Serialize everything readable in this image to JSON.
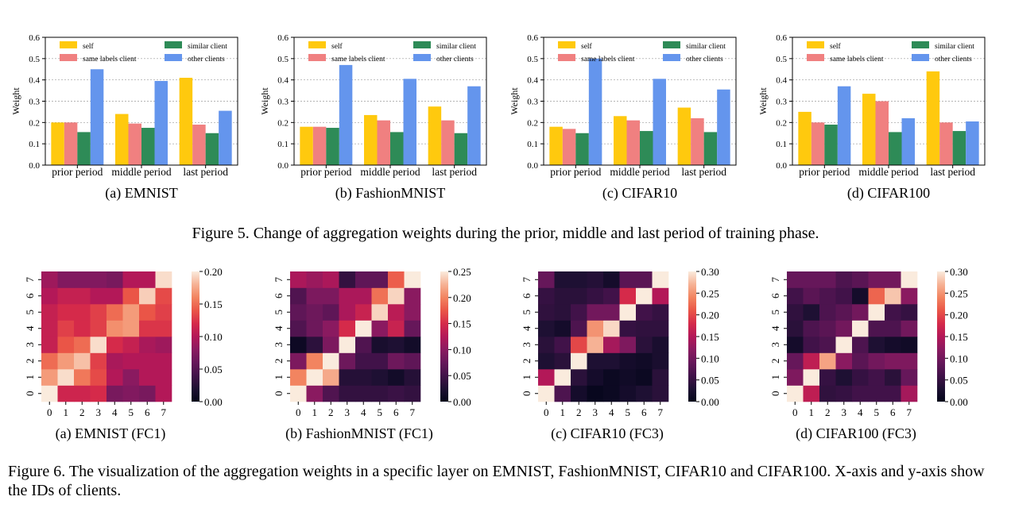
{
  "figure5": {
    "caption": "Figure 5. Change of aggregation weights during the prior, middle and last period of training phase.",
    "panels": [
      {
        "caption": "(a) EMNIST"
      },
      {
        "caption": "(b) FashionMNIST"
      },
      {
        "caption": "(c) CIFAR10"
      },
      {
        "caption": "(d) CIFAR100"
      }
    ]
  },
  "figure6": {
    "caption": "Figure 6. The visualization of the aggregation weights in a specific layer on EMNIST, FashionMNIST, CIFAR10 and CIFAR100. X-axis and y-axis show the IDs of clients.",
    "panels": [
      {
        "caption": "(a) EMNIST (FC1)"
      },
      {
        "caption": "(b) FashionMNIST (FC1)"
      },
      {
        "caption": "(c) CIFAR10 (FC3)"
      },
      {
        "caption": "(d) CIFAR100 (FC3)"
      }
    ]
  },
  "colors": {
    "self": "#ffc90e",
    "same labels client": "#f08080",
    "similar client": "#2e8b57",
    "other clients": "#6495ed",
    "heatmap_colormap": "rocket"
  },
  "chart_data": [
    {
      "type": "bar",
      "ylabel": "Weight",
      "ylim": [
        0,
        0.6
      ],
      "yticks": [
        "0.0",
        "0.1",
        "0.2",
        "0.3",
        "0.4",
        "0.5",
        "0.6"
      ],
      "categories": [
        "prior period",
        "middle period",
        "last period"
      ],
      "legend_position": "top",
      "grid": "horizontal dashed",
      "series": [
        {
          "name": "self",
          "values": [
            0.2,
            0.24,
            0.41
          ]
        },
        {
          "name": "same labels client",
          "values": [
            0.2,
            0.195,
            0.19
          ]
        },
        {
          "name": "similar client",
          "values": [
            0.155,
            0.175,
            0.15
          ]
        },
        {
          "name": "other clients",
          "values": [
            0.45,
            0.395,
            0.255
          ]
        }
      ]
    },
    {
      "type": "bar",
      "ylabel": "Weight",
      "ylim": [
        0,
        0.6
      ],
      "yticks": [
        "0.0",
        "0.1",
        "0.2",
        "0.3",
        "0.4",
        "0.5",
        "0.6"
      ],
      "categories": [
        "prior period",
        "middle period",
        "last period"
      ],
      "legend_position": "top",
      "grid": "horizontal dashed",
      "series": [
        {
          "name": "self",
          "values": [
            0.18,
            0.235,
            0.275
          ]
        },
        {
          "name": "same labels client",
          "values": [
            0.18,
            0.21,
            0.21
          ]
        },
        {
          "name": "similar client",
          "values": [
            0.175,
            0.155,
            0.15
          ]
        },
        {
          "name": "other clients",
          "values": [
            0.47,
            0.405,
            0.37
          ]
        }
      ]
    },
    {
      "type": "bar",
      "ylabel": "Weight",
      "ylim": [
        0,
        0.6
      ],
      "yticks": [
        "0.0",
        "0.1",
        "0.2",
        "0.3",
        "0.4",
        "0.5",
        "0.6"
      ],
      "categories": [
        "prior period",
        "middle period",
        "last period"
      ],
      "legend_position": "top",
      "grid": "horizontal dashed",
      "series": [
        {
          "name": "self",
          "values": [
            0.18,
            0.23,
            0.27
          ]
        },
        {
          "name": "same labels client",
          "values": [
            0.17,
            0.21,
            0.22
          ]
        },
        {
          "name": "similar client",
          "values": [
            0.15,
            0.16,
            0.155
          ]
        },
        {
          "name": "other clients",
          "values": [
            0.5,
            0.405,
            0.355
          ]
        }
      ]
    },
    {
      "type": "bar",
      "ylabel": "Weight",
      "ylim": [
        0,
        0.6
      ],
      "yticks": [
        "0.0",
        "0.1",
        "0.2",
        "0.3",
        "0.4",
        "0.5",
        "0.6"
      ],
      "categories": [
        "prior period",
        "middle period",
        "last period"
      ],
      "legend_position": "top",
      "grid": "horizontal dashed",
      "series": [
        {
          "name": "self",
          "values": [
            0.25,
            0.335,
            0.44
          ]
        },
        {
          "name": "same labels client",
          "values": [
            0.2,
            0.3,
            0.2
          ]
        },
        {
          "name": "similar client",
          "values": [
            0.19,
            0.155,
            0.16
          ]
        },
        {
          "name": "other clients",
          "values": [
            0.37,
            0.22,
            0.205
          ]
        }
      ]
    },
    {
      "type": "heatmap",
      "x_labels": [
        "0",
        "1",
        "2",
        "3",
        "4",
        "5",
        "6",
        "7"
      ],
      "y_labels": [
        "0",
        "1",
        "2",
        "3",
        "4",
        "5",
        "6",
        "7"
      ],
      "vmin": 0,
      "vmax": 0.2,
      "colorbar_ticks": [
        "0.00",
        "0.05",
        "0.10",
        "0.15",
        "0.20"
      ],
      "values": [
        [
          0.2,
          0.115,
          0.115,
          0.12,
          0.07,
          0.075,
          0.07,
          0.1
        ],
        [
          0.17,
          0.195,
          0.155,
          0.135,
          0.1,
          0.08,
          0.1,
          0.1
        ],
        [
          0.15,
          0.17,
          0.185,
          0.13,
          0.095,
          0.1,
          0.1,
          0.1
        ],
        [
          0.11,
          0.14,
          0.15,
          0.195,
          0.12,
          0.11,
          0.095,
          0.09
        ],
        [
          0.11,
          0.13,
          0.12,
          0.13,
          0.165,
          0.17,
          0.125,
          0.125
        ],
        [
          0.11,
          0.12,
          0.12,
          0.13,
          0.15,
          0.17,
          0.14,
          0.13
        ],
        [
          0.1,
          0.11,
          0.11,
          0.1,
          0.1,
          0.14,
          0.19,
          0.135
        ],
        [
          0.09,
          0.075,
          0.075,
          0.075,
          0.07,
          0.1,
          0.1,
          0.195
        ]
      ]
    },
    {
      "type": "heatmap",
      "x_labels": [
        "0",
        "1",
        "2",
        "3",
        "4",
        "5",
        "6",
        "7"
      ],
      "y_labels": [
        "0",
        "1",
        "2",
        "3",
        "4",
        "5",
        "6",
        "7"
      ],
      "vmin": 0,
      "vmax": 0.25,
      "colorbar_ticks": [
        "0.00",
        "0.05",
        "0.10",
        "0.15",
        "0.20",
        "0.25"
      ],
      "values": [
        [
          0.25,
          0.1,
          0.06,
          0.04,
          0.04,
          0.04,
          0.045,
          0.04
        ],
        [
          0.2,
          0.25,
          0.22,
          0.03,
          0.03,
          0.025,
          0.015,
          0.03
        ],
        [
          0.09,
          0.2,
          0.25,
          0.08,
          0.05,
          0.05,
          0.08,
          0.07
        ],
        [
          0.01,
          0.035,
          0.09,
          0.25,
          0.06,
          0.02,
          0.025,
          0.015
        ],
        [
          0.06,
          0.08,
          0.1,
          0.15,
          0.25,
          0.1,
          0.14,
          0.075
        ],
        [
          0.07,
          0.08,
          0.07,
          0.12,
          0.14,
          0.24,
          0.13,
          0.1
        ],
        [
          0.06,
          0.09,
          0.09,
          0.12,
          0.12,
          0.19,
          0.24,
          0.1
        ],
        [
          0.12,
          0.11,
          0.12,
          0.04,
          0.07,
          0.07,
          0.18,
          0.25
        ]
      ]
    },
    {
      "type": "heatmap",
      "x_labels": [
        "0",
        "1",
        "2",
        "3",
        "4",
        "5",
        "6",
        "7"
      ],
      "y_labels": [
        "0",
        "1",
        "2",
        "3",
        "4",
        "5",
        "6",
        "7"
      ],
      "vmin": 0,
      "vmax": 0.3,
      "colorbar_ticks": [
        "0.00",
        "0.05",
        "0.10",
        "0.15",
        "0.20",
        "0.25",
        "0.30"
      ],
      "values": [
        [
          0.3,
          0.07,
          0.02,
          0.005,
          0.01,
          0.02,
          0.03,
          0.04
        ],
        [
          0.15,
          0.3,
          0.04,
          0.02,
          0.01,
          0.015,
          0.01,
          0.04
        ],
        [
          0.03,
          0.04,
          0.3,
          0.03,
          0.03,
          0.02,
          0.015,
          0.025
        ],
        [
          0.04,
          0.06,
          0.2,
          0.27,
          0.14,
          0.11,
          0.04,
          0.025
        ],
        [
          0.03,
          0.02,
          0.07,
          0.25,
          0.29,
          0.05,
          0.045,
          0.045
        ],
        [
          0.045,
          0.04,
          0.06,
          0.1,
          0.1,
          0.3,
          0.06,
          0.05
        ],
        [
          0.05,
          0.04,
          0.04,
          0.05,
          0.06,
          0.18,
          0.3,
          0.15
        ],
        [
          0.09,
          0.03,
          0.03,
          0.035,
          0.02,
          0.08,
          0.08,
          0.3
        ]
      ]
    },
    {
      "type": "heatmap",
      "x_labels": [
        "0",
        "1",
        "2",
        "3",
        "4",
        "5",
        "6",
        "7"
      ],
      "y_labels": [
        "0",
        "1",
        "2",
        "3",
        "4",
        "5",
        "6",
        "7"
      ],
      "vmin": 0,
      "vmax": 0.3,
      "colorbar_ticks": [
        "0.00",
        "0.05",
        "0.10",
        "0.15",
        "0.20",
        "0.25",
        "0.30"
      ],
      "values": [
        [
          0.3,
          0.16,
          0.045,
          0.05,
          0.06,
          0.06,
          0.06,
          0.14
        ],
        [
          0.11,
          0.3,
          0.05,
          0.03,
          0.05,
          0.06,
          0.04,
          0.09
        ],
        [
          0.09,
          0.16,
          0.26,
          0.12,
          0.08,
          0.1,
          0.11,
          0.11
        ],
        [
          0.02,
          0.06,
          0.07,
          0.3,
          0.07,
          0.03,
          0.02,
          0.015
        ],
        [
          0.04,
          0.07,
          0.08,
          0.1,
          0.3,
          0.07,
          0.07,
          0.1
        ],
        [
          0.045,
          0.03,
          0.07,
          0.08,
          0.1,
          0.3,
          0.06,
          0.05
        ],
        [
          0.06,
          0.08,
          0.07,
          0.06,
          0.02,
          0.22,
          0.28,
          0.12
        ],
        [
          0.09,
          0.09,
          0.09,
          0.07,
          0.08,
          0.1,
          0.1,
          0.3
        ]
      ]
    }
  ]
}
